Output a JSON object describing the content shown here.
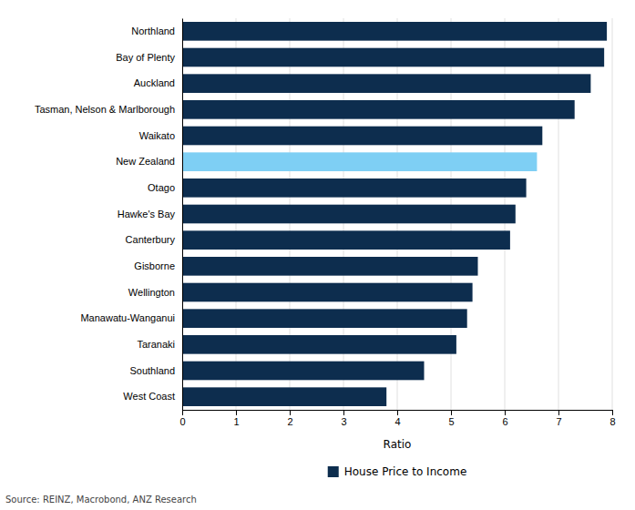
{
  "chart_data": {
    "type": "bar",
    "orientation": "horizontal",
    "categories": [
      "Northland",
      "Bay of Plenty",
      "Auckland",
      "Tasman, Nelson & Marlborough",
      "Waikato",
      "New Zealand",
      "Otago",
      "Hawke's Bay",
      "Canterbury",
      "Gisborne",
      "Wellington",
      "Manawatu-Wanganui",
      "Taranaki",
      "Southland",
      "West Coast"
    ],
    "series": [
      {
        "name": "House Price to Income",
        "color": "#0d2d4e",
        "colors": [
          "#0d2d4e",
          "#0d2d4e",
          "#0d2d4e",
          "#0d2d4e",
          "#0d2d4e",
          "#7ecff4",
          "#0d2d4e",
          "#0d2d4e",
          "#0d2d4e",
          "#0d2d4e",
          "#0d2d4e",
          "#0d2d4e",
          "#0d2d4e",
          "#0d2d4e",
          "#0d2d4e"
        ],
        "values": [
          7.9,
          7.85,
          7.6,
          7.3,
          6.7,
          6.6,
          6.4,
          6.2,
          6.1,
          5.5,
          5.4,
          5.3,
          5.1,
          4.5,
          3.8
        ]
      }
    ],
    "xlabel": "Ratio",
    "xlim": [
      0,
      8
    ],
    "xticks": [
      0,
      1,
      2,
      3,
      4,
      5,
      6,
      7,
      8
    ],
    "grid": true,
    "legend": "bottom",
    "annotations": [
      "Source: REINZ, Macrobond, ANZ Research"
    ]
  }
}
